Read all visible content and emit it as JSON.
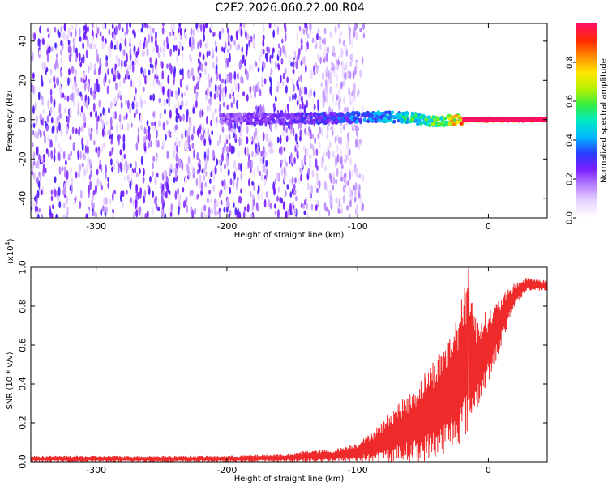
{
  "title": "C2E2.2026.060.22.00.R04",
  "chart_data": [
    {
      "type": "heatmap",
      "xlabel": "Height of straight line (km)",
      "ylabel": "Frequency (Hz)",
      "xlim": [
        -350,
        45
      ],
      "ylim": [
        -50,
        49
      ],
      "xticks": [
        -300,
        -200,
        -100,
        0
      ],
      "xtick_labels": [
        "-300",
        "-200",
        "-100",
        "0"
      ],
      "yticks": [
        -40,
        -20,
        0,
        20,
        40
      ],
      "ytick_labels": [
        "-40",
        "-20",
        "0",
        "20",
        "40"
      ],
      "colorbar": {
        "label": "Normalized spectral amplitude",
        "range": [
          0.0,
          1.0
        ],
        "ticks": [
          0.0,
          0.2,
          0.4,
          0.6,
          0.8
        ],
        "tick_labels": [
          "0.0",
          "0.2",
          "0.4",
          "0.6",
          "0.8"
        ],
        "colors": [
          "#ffffff",
          "#e9d6ff",
          "#b784ff",
          "#7a1fff",
          "#2a3cff",
          "#00b8ff",
          "#00e8c8",
          "#33ee44",
          "#b4f000",
          "#ffe800",
          "#ff9000",
          "#ff2a00",
          "#ff1060"
        ]
      },
      "description_series": [
        {
          "name": "noise field",
          "x_range": [
            -350,
            -110
          ],
          "freq_range": [
            -50,
            49
          ],
          "amplitude": 0.15
        },
        {
          "name": "signal band",
          "x": [
            -205,
            -150,
            -110,
            -80,
            -60,
            -40,
            -20,
            0,
            20,
            45
          ],
          "freq": [
            0.5,
            0.5,
            1.0,
            1.5,
            1.0,
            -1.0,
            0.0,
            0.0,
            0.0,
            0.0
          ],
          "amplitude": [
            0.25,
            0.3,
            0.4,
            0.5,
            0.6,
            0.7,
            0.95,
            1.0,
            1.0,
            1.0
          ]
        }
      ]
    },
    {
      "type": "line",
      "xlabel": "Height of straight line (km)",
      "ylabel": "SNR (10 * v/v)",
      "y_multiplier": "(x10",
      "y_multiplier_exp": "4",
      "y_multiplier_close": ")",
      "xlim": [
        -350,
        45
      ],
      "ylim": [
        0.0,
        1.0
      ],
      "xticks": [
        -300,
        -200,
        -100,
        0
      ],
      "xtick_labels": [
        "-300",
        "-200",
        "-100",
        "0"
      ],
      "yticks": [
        0.0,
        0.2,
        0.4,
        0.6,
        0.8,
        1.0
      ],
      "ytick_labels": [
        "0.0",
        "0.2",
        "0.4",
        "0.6",
        "0.8",
        "1.0"
      ],
      "color": "#ee2a2a",
      "series": [
        {
          "name": "SNR envelope",
          "x": [
            -350,
            -300,
            -250,
            -200,
            -150,
            -140,
            -120,
            -100,
            -90,
            -80,
            -70,
            -60,
            -50,
            -40,
            -30,
            -20,
            -15,
            -10,
            0,
            10,
            20,
            30,
            45
          ],
          "max": [
            0.03,
            0.03,
            0.03,
            0.03,
            0.04,
            0.06,
            0.06,
            0.1,
            0.15,
            0.22,
            0.3,
            0.35,
            0.45,
            0.55,
            0.65,
            0.85,
            1.0,
            0.75,
            0.78,
            0.85,
            0.92,
            0.95,
            0.93
          ],
          "min": [
            0.0,
            0.0,
            0.0,
            0.0,
            0.0,
            0.0,
            0.0,
            0.0,
            0.0,
            0.0,
            0.0,
            0.0,
            0.0,
            0.02,
            0.05,
            0.1,
            0.15,
            0.25,
            0.4,
            0.6,
            0.8,
            0.88,
            0.88
          ]
        }
      ]
    }
  ]
}
